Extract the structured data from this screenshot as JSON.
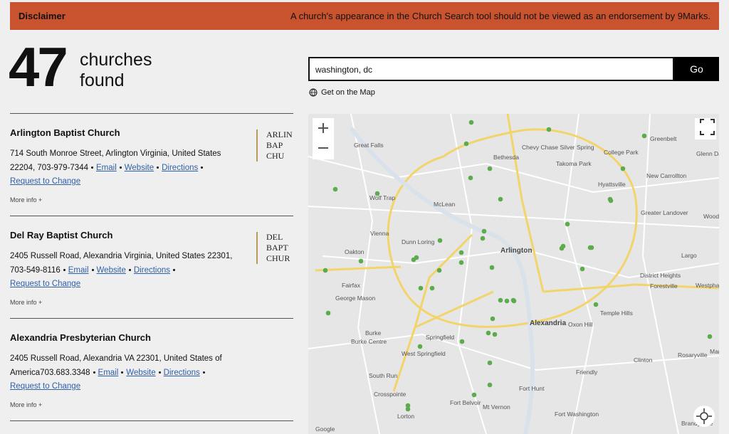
{
  "disclaimer": {
    "label": "Disclaimer",
    "message": "A church's appearance in the Church Search tool should not be viewed as an endorsement by 9Marks."
  },
  "results": {
    "count": "47",
    "label_line1": "churches",
    "label_line2": "found"
  },
  "search": {
    "query": "washington, dc",
    "button": "Go"
  },
  "map_link": "Get on the Map",
  "churches": [
    {
      "name": "Arlington Baptist Church",
      "address": [
        "714 South Monroe Street, Arlington Virginia, United States",
        "22204, 703-979-7344"
      ],
      "links": [
        "Email",
        "Website",
        "Directions"
      ],
      "request": "Request to Change",
      "more": "More info +",
      "logo": [
        "ARLIN",
        "BAP",
        "CHU"
      ]
    },
    {
      "name": "Del Ray Baptist Church",
      "address": [
        "2405 Russell Road, Alexandria Virginia, United States 22301,",
        "703-549-8116"
      ],
      "links": [
        "Email",
        "Website",
        "Directions"
      ],
      "request": "Request to Change",
      "more": "More info +",
      "logo": [
        "DEL",
        "BAPT",
        "CHUR"
      ]
    },
    {
      "name": "Alexandria Presbyterian Church",
      "address": [
        "2405 Russell Road, Alexandria VA 22301, United States of",
        "America703.683.3348"
      ],
      "links": [
        "Email",
        "Website",
        "Directions"
      ],
      "request": "Request to Change",
      "more": "More info +",
      "logo": []
    }
  ],
  "map": {
    "labels": [
      "Great Falls",
      "Bethesda",
      "Chevy Chase Silver Spring",
      "Takoma Park",
      "Hyattsville",
      "College Park",
      "Greenbelt",
      "Glenn Dale",
      "New Carrollton",
      "Wolf Trap",
      "McLean",
      "Vienna",
      "Dunn Loring",
      "Arlington",
      "Oakton",
      "Greater Landover",
      "Woodmore",
      "Largo",
      "District Heights",
      "Forestville",
      "Westphalia",
      "Fairfax",
      "George Mason",
      "Alexandria",
      "Oxon Hill",
      "Temple Hills",
      "Burke",
      "Burke Centre",
      "Springfield",
      "West Springfield",
      "Rosaryville",
      "Clinton",
      "Friendly",
      "South Run",
      "Crosspointe",
      "Fort Hunt",
      "Fort Belvoir",
      "Mt Vernon",
      "Fort Washington",
      "Lorton",
      "Brandywine",
      "Marlboro",
      "Google"
    ]
  }
}
